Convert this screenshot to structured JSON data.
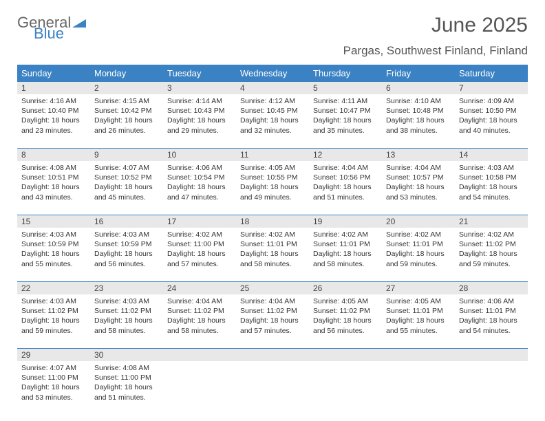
{
  "logo": {
    "text1": "General",
    "text2": "Blue"
  },
  "title": "June 2025",
  "location": "Pargas, Southwest Finland, Finland",
  "colors": {
    "header_bg": "#3b82c4",
    "header_text": "#ffffff",
    "daynum_bg": "#e8e8e8",
    "border": "#3b82c4",
    "text": "#333333",
    "title_text": "#555555"
  },
  "day_headers": [
    "Sunday",
    "Monday",
    "Tuesday",
    "Wednesday",
    "Thursday",
    "Friday",
    "Saturday"
  ],
  "weeks": [
    {
      "nums": [
        "1",
        "2",
        "3",
        "4",
        "5",
        "6",
        "7"
      ],
      "cells": [
        {
          "sunrise": "Sunrise: 4:16 AM",
          "sunset": "Sunset: 10:40 PM",
          "dl1": "Daylight: 18 hours",
          "dl2": "and 23 minutes."
        },
        {
          "sunrise": "Sunrise: 4:15 AM",
          "sunset": "Sunset: 10:42 PM",
          "dl1": "Daylight: 18 hours",
          "dl2": "and 26 minutes."
        },
        {
          "sunrise": "Sunrise: 4:14 AM",
          "sunset": "Sunset: 10:43 PM",
          "dl1": "Daylight: 18 hours",
          "dl2": "and 29 minutes."
        },
        {
          "sunrise": "Sunrise: 4:12 AM",
          "sunset": "Sunset: 10:45 PM",
          "dl1": "Daylight: 18 hours",
          "dl2": "and 32 minutes."
        },
        {
          "sunrise": "Sunrise: 4:11 AM",
          "sunset": "Sunset: 10:47 PM",
          "dl1": "Daylight: 18 hours",
          "dl2": "and 35 minutes."
        },
        {
          "sunrise": "Sunrise: 4:10 AM",
          "sunset": "Sunset: 10:48 PM",
          "dl1": "Daylight: 18 hours",
          "dl2": "and 38 minutes."
        },
        {
          "sunrise": "Sunrise: 4:09 AM",
          "sunset": "Sunset: 10:50 PM",
          "dl1": "Daylight: 18 hours",
          "dl2": "and 40 minutes."
        }
      ]
    },
    {
      "nums": [
        "8",
        "9",
        "10",
        "11",
        "12",
        "13",
        "14"
      ],
      "cells": [
        {
          "sunrise": "Sunrise: 4:08 AM",
          "sunset": "Sunset: 10:51 PM",
          "dl1": "Daylight: 18 hours",
          "dl2": "and 43 minutes."
        },
        {
          "sunrise": "Sunrise: 4:07 AM",
          "sunset": "Sunset: 10:52 PM",
          "dl1": "Daylight: 18 hours",
          "dl2": "and 45 minutes."
        },
        {
          "sunrise": "Sunrise: 4:06 AM",
          "sunset": "Sunset: 10:54 PM",
          "dl1": "Daylight: 18 hours",
          "dl2": "and 47 minutes."
        },
        {
          "sunrise": "Sunrise: 4:05 AM",
          "sunset": "Sunset: 10:55 PM",
          "dl1": "Daylight: 18 hours",
          "dl2": "and 49 minutes."
        },
        {
          "sunrise": "Sunrise: 4:04 AM",
          "sunset": "Sunset: 10:56 PM",
          "dl1": "Daylight: 18 hours",
          "dl2": "and 51 minutes."
        },
        {
          "sunrise": "Sunrise: 4:04 AM",
          "sunset": "Sunset: 10:57 PM",
          "dl1": "Daylight: 18 hours",
          "dl2": "and 53 minutes."
        },
        {
          "sunrise": "Sunrise: 4:03 AM",
          "sunset": "Sunset: 10:58 PM",
          "dl1": "Daylight: 18 hours",
          "dl2": "and 54 minutes."
        }
      ]
    },
    {
      "nums": [
        "15",
        "16",
        "17",
        "18",
        "19",
        "20",
        "21"
      ],
      "cells": [
        {
          "sunrise": "Sunrise: 4:03 AM",
          "sunset": "Sunset: 10:59 PM",
          "dl1": "Daylight: 18 hours",
          "dl2": "and 55 minutes."
        },
        {
          "sunrise": "Sunrise: 4:03 AM",
          "sunset": "Sunset: 10:59 PM",
          "dl1": "Daylight: 18 hours",
          "dl2": "and 56 minutes."
        },
        {
          "sunrise": "Sunrise: 4:02 AM",
          "sunset": "Sunset: 11:00 PM",
          "dl1": "Daylight: 18 hours",
          "dl2": "and 57 minutes."
        },
        {
          "sunrise": "Sunrise: 4:02 AM",
          "sunset": "Sunset: 11:01 PM",
          "dl1": "Daylight: 18 hours",
          "dl2": "and 58 minutes."
        },
        {
          "sunrise": "Sunrise: 4:02 AM",
          "sunset": "Sunset: 11:01 PM",
          "dl1": "Daylight: 18 hours",
          "dl2": "and 58 minutes."
        },
        {
          "sunrise": "Sunrise: 4:02 AM",
          "sunset": "Sunset: 11:01 PM",
          "dl1": "Daylight: 18 hours",
          "dl2": "and 59 minutes."
        },
        {
          "sunrise": "Sunrise: 4:02 AM",
          "sunset": "Sunset: 11:02 PM",
          "dl1": "Daylight: 18 hours",
          "dl2": "and 59 minutes."
        }
      ]
    },
    {
      "nums": [
        "22",
        "23",
        "24",
        "25",
        "26",
        "27",
        "28"
      ],
      "cells": [
        {
          "sunrise": "Sunrise: 4:03 AM",
          "sunset": "Sunset: 11:02 PM",
          "dl1": "Daylight: 18 hours",
          "dl2": "and 59 minutes."
        },
        {
          "sunrise": "Sunrise: 4:03 AM",
          "sunset": "Sunset: 11:02 PM",
          "dl1": "Daylight: 18 hours",
          "dl2": "and 58 minutes."
        },
        {
          "sunrise": "Sunrise: 4:04 AM",
          "sunset": "Sunset: 11:02 PM",
          "dl1": "Daylight: 18 hours",
          "dl2": "and 58 minutes."
        },
        {
          "sunrise": "Sunrise: 4:04 AM",
          "sunset": "Sunset: 11:02 PM",
          "dl1": "Daylight: 18 hours",
          "dl2": "and 57 minutes."
        },
        {
          "sunrise": "Sunrise: 4:05 AM",
          "sunset": "Sunset: 11:02 PM",
          "dl1": "Daylight: 18 hours",
          "dl2": "and 56 minutes."
        },
        {
          "sunrise": "Sunrise: 4:05 AM",
          "sunset": "Sunset: 11:01 PM",
          "dl1": "Daylight: 18 hours",
          "dl2": "and 55 minutes."
        },
        {
          "sunrise": "Sunrise: 4:06 AM",
          "sunset": "Sunset: 11:01 PM",
          "dl1": "Daylight: 18 hours",
          "dl2": "and 54 minutes."
        }
      ]
    },
    {
      "nums": [
        "29",
        "30",
        "",
        "",
        "",
        "",
        ""
      ],
      "cells": [
        {
          "sunrise": "Sunrise: 4:07 AM",
          "sunset": "Sunset: 11:00 PM",
          "dl1": "Daylight: 18 hours",
          "dl2": "and 53 minutes."
        },
        {
          "sunrise": "Sunrise: 4:08 AM",
          "sunset": "Sunset: 11:00 PM",
          "dl1": "Daylight: 18 hours",
          "dl2": "and 51 minutes."
        },
        null,
        null,
        null,
        null,
        null
      ]
    }
  ]
}
